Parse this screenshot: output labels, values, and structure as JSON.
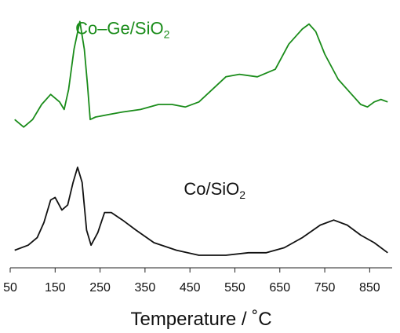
{
  "chart_data": {
    "type": "line",
    "xlabel": "Temperature / ˚C",
    "xlim": [
      50,
      900
    ],
    "xticks": [
      50,
      150,
      250,
      350,
      450,
      550,
      650,
      750,
      850
    ],
    "ylabel": "",
    "yaxis_visible": false,
    "ylim": [
      -0.05,
      1.0
    ],
    "grid": false,
    "legend": "none",
    "series": [
      {
        "name_main": "Co–Ge/SiO",
        "name_sub": "2",
        "color": "#1a8c1a",
        "points": [
          [
            60,
            0.54
          ],
          [
            80,
            0.51
          ],
          [
            100,
            0.54
          ],
          [
            120,
            0.6
          ],
          [
            140,
            0.64
          ],
          [
            160,
            0.61
          ],
          [
            170,
            0.58
          ],
          [
            180,
            0.66
          ],
          [
            192,
            0.82
          ],
          [
            205,
            0.93
          ],
          [
            215,
            0.82
          ],
          [
            222,
            0.68
          ],
          [
            228,
            0.54
          ],
          [
            240,
            0.55
          ],
          [
            270,
            0.56
          ],
          [
            300,
            0.57
          ],
          [
            340,
            0.58
          ],
          [
            380,
            0.6
          ],
          [
            410,
            0.6
          ],
          [
            440,
            0.59
          ],
          [
            470,
            0.61
          ],
          [
            500,
            0.66
          ],
          [
            530,
            0.71
          ],
          [
            560,
            0.72
          ],
          [
            600,
            0.71
          ],
          [
            640,
            0.74
          ],
          [
            670,
            0.84
          ],
          [
            700,
            0.9
          ],
          [
            715,
            0.92
          ],
          [
            730,
            0.89
          ],
          [
            750,
            0.8
          ],
          [
            780,
            0.7
          ],
          [
            810,
            0.64
          ],
          [
            830,
            0.6
          ],
          [
            845,
            0.59
          ],
          [
            860,
            0.61
          ],
          [
            875,
            0.62
          ],
          [
            890,
            0.61
          ]
        ]
      },
      {
        "name_main": "Co/SiO",
        "name_sub": "2",
        "color": "#111111",
        "points": [
          [
            60,
            0.02
          ],
          [
            90,
            0.04
          ],
          [
            110,
            0.07
          ],
          [
            125,
            0.13
          ],
          [
            140,
            0.22
          ],
          [
            150,
            0.23
          ],
          [
            165,
            0.18
          ],
          [
            178,
            0.2
          ],
          [
            190,
            0.29
          ],
          [
            200,
            0.35
          ],
          [
            210,
            0.29
          ],
          [
            220,
            0.1
          ],
          [
            230,
            0.04
          ],
          [
            245,
            0.09
          ],
          [
            260,
            0.17
          ],
          [
            275,
            0.17
          ],
          [
            300,
            0.14
          ],
          [
            330,
            0.1
          ],
          [
            370,
            0.05
          ],
          [
            420,
            0.02
          ],
          [
            470,
            0.0
          ],
          [
            530,
            0.0
          ],
          [
            580,
            0.01
          ],
          [
            620,
            0.01
          ],
          [
            660,
            0.03
          ],
          [
            700,
            0.07
          ],
          [
            740,
            0.12
          ],
          [
            770,
            0.14
          ],
          [
            800,
            0.12
          ],
          [
            830,
            0.08
          ],
          [
            860,
            0.05
          ],
          [
            890,
            0.01
          ]
        ]
      }
    ],
    "annotations": [
      {
        "series": 0,
        "text": "Co–Ge/SiO",
        "sub": "2",
        "x": 300,
        "y": 0.88
      },
      {
        "series": 1,
        "text": "Co/SiO",
        "sub": "2",
        "x": 505,
        "y": 0.24
      }
    ]
  }
}
